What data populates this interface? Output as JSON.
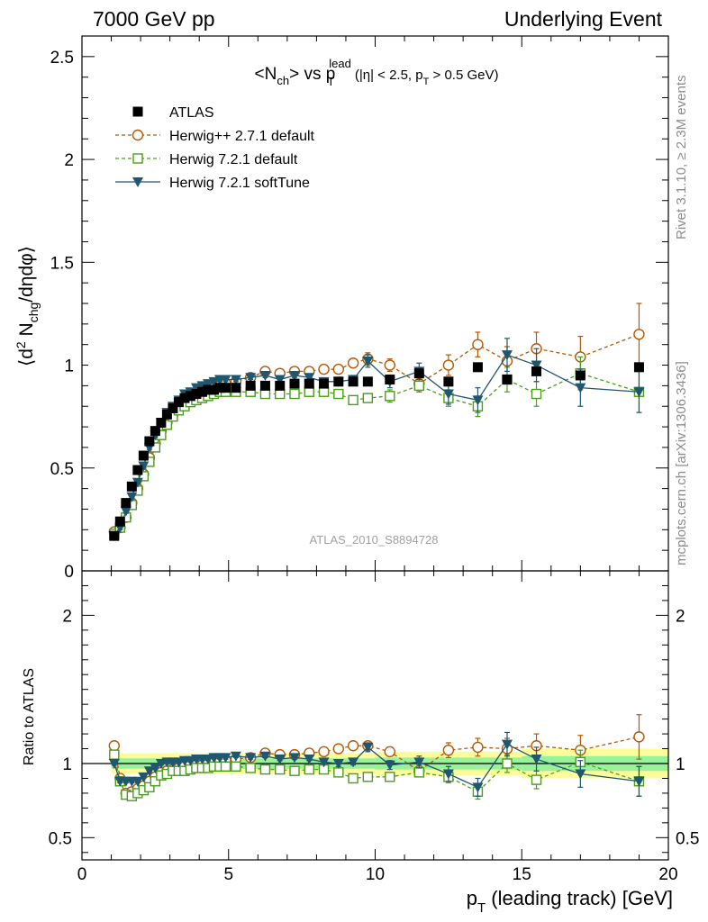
{
  "header": {
    "left": "7000 GeV pp",
    "right": "Underlying Event"
  },
  "side_labels": {
    "rivet": "Rivet 3.1.10, ≥ 2.3M events",
    "mcplots": "mcplots.cern.ch [arXiv:1306.3436]"
  },
  "watermark": "ATLAS_2010_S8894728",
  "colors": {
    "atlas": "#000000",
    "herwigpp": "#b35806",
    "herwig72": "#4b9c1c",
    "softtune": "#1f5670",
    "band_inner": "#97f29a",
    "band_outer": "#fcfc9c"
  },
  "chart_data": [
    {
      "type": "scatter",
      "title": "<Nch> vs pT lead (|η| < 2.5, pT > 0.5 GeV)",
      "title_parts": {
        "main": "<N",
        "sub1": "ch",
        "mid": "> vs p",
        "sub2": "T",
        "sup": "lead",
        "cuts": "(|η| < 2.5, p",
        "sub3": "T",
        "end": " > 0.5 GeV)"
      },
      "ylabel": "⟨d² Nchg/dηdφ⟩",
      "ylabel_parts": {
        "open": "⟨d",
        "sup": "2",
        "mid": " N",
        "sub": "chg",
        "end": "/dηdφ⟩"
      },
      "xlim": [
        0,
        20
      ],
      "ylim": [
        0,
        2.6
      ],
      "yticks": [
        0,
        0.5,
        1,
        1.5,
        2,
        2.5
      ],
      "ytick_labels": [
        "0",
        "0.5",
        "1",
        "1.5",
        "2",
        "2.5"
      ],
      "legend_position": "top-left",
      "x": [
        1.1,
        1.3,
        1.5,
        1.7,
        1.9,
        2.1,
        2.3,
        2.5,
        2.7,
        2.9,
        3.1,
        3.3,
        3.5,
        3.7,
        3.9,
        4.1,
        4.3,
        4.5,
        4.7,
        4.9,
        5.25,
        5.75,
        6.25,
        6.75,
        7.25,
        7.75,
        8.25,
        8.75,
        9.25,
        9.75,
        10.5,
        11.5,
        12.5,
        13.5,
        14.5,
        15.5,
        17,
        19
      ],
      "series": [
        {
          "name": "ATLAS",
          "marker": "filled-square",
          "y": [
            0.17,
            0.24,
            0.33,
            0.41,
            0.49,
            0.56,
            0.63,
            0.68,
            0.72,
            0.76,
            0.79,
            0.82,
            0.84,
            0.85,
            0.86,
            0.87,
            0.88,
            0.88,
            0.89,
            0.89,
            0.89,
            0.9,
            0.9,
            0.9,
            0.91,
            0.91,
            0.91,
            0.92,
            0.92,
            0.92,
            0.93,
            0.96,
            0.92,
            0.99,
            0.93,
            0.97,
            0.95,
            0.99
          ]
        },
        {
          "name": "Herwig++ 2.7.1 default",
          "marker": "open-circle",
          "y": [
            0.19,
            0.21,
            0.26,
            0.33,
            0.4,
            0.47,
            0.55,
            0.62,
            0.68,
            0.72,
            0.76,
            0.79,
            0.82,
            0.84,
            0.85,
            0.86,
            0.88,
            0.89,
            0.9,
            0.91,
            0.92,
            0.94,
            0.97,
            0.96,
            0.97,
            0.97,
            0.98,
            0.98,
            1.01,
            1.03,
            1.0,
            0.91,
            1.0,
            1.1,
            1.02,
            1.08,
            1.04,
            1.15
          ],
          "err": [
            0.01,
            0.01,
            0.01,
            0.01,
            0.01,
            0.01,
            0.01,
            0.01,
            0.01,
            0.01,
            0.01,
            0.01,
            0.01,
            0.01,
            0.01,
            0.01,
            0.01,
            0.01,
            0.01,
            0.01,
            0.01,
            0.01,
            0.01,
            0.01,
            0.01,
            0.01,
            0.01,
            0.02,
            0.02,
            0.03,
            0.03,
            0.04,
            0.05,
            0.06,
            0.07,
            0.08,
            0.1,
            0.15
          ]
        },
        {
          "name": "Herwig 7.2.1 default",
          "marker": "open-square",
          "y": [
            0.18,
            0.21,
            0.26,
            0.32,
            0.39,
            0.46,
            0.53,
            0.6,
            0.66,
            0.71,
            0.75,
            0.78,
            0.8,
            0.82,
            0.83,
            0.84,
            0.85,
            0.86,
            0.87,
            0.87,
            0.87,
            0.87,
            0.86,
            0.86,
            0.86,
            0.87,
            0.87,
            0.86,
            0.83,
            0.84,
            0.85,
            0.9,
            0.84,
            0.8,
            0.93,
            0.86,
            0.96,
            0.87
          ],
          "err": [
            0.01,
            0.01,
            0.01,
            0.01,
            0.01,
            0.01,
            0.01,
            0.01,
            0.01,
            0.01,
            0.01,
            0.01,
            0.01,
            0.01,
            0.01,
            0.01,
            0.01,
            0.01,
            0.01,
            0.01,
            0.01,
            0.01,
            0.01,
            0.01,
            0.01,
            0.01,
            0.01,
            0.02,
            0.02,
            0.02,
            0.03,
            0.03,
            0.04,
            0.05,
            0.06,
            0.06,
            0.08,
            0.1
          ]
        },
        {
          "name": "Herwig 7.2.1 softTune",
          "marker": "filled-triangle-down",
          "y": [
            0.17,
            0.21,
            0.29,
            0.36,
            0.43,
            0.51,
            0.6,
            0.66,
            0.72,
            0.77,
            0.8,
            0.83,
            0.86,
            0.87,
            0.89,
            0.9,
            0.91,
            0.92,
            0.93,
            0.93,
            0.93,
            0.94,
            0.95,
            0.93,
            0.95,
            0.94,
            0.92,
            0.92,
            0.93,
            1.02,
            0.92,
            0.97,
            0.86,
            0.83,
            1.05,
            1.0,
            0.89,
            0.87
          ],
          "err": [
            0.01,
            0.01,
            0.01,
            0.01,
            0.01,
            0.01,
            0.01,
            0.01,
            0.01,
            0.01,
            0.01,
            0.01,
            0.01,
            0.01,
            0.01,
            0.01,
            0.01,
            0.01,
            0.01,
            0.01,
            0.01,
            0.01,
            0.01,
            0.01,
            0.01,
            0.01,
            0.01,
            0.02,
            0.02,
            0.03,
            0.03,
            0.04,
            0.05,
            0.06,
            0.08,
            0.08,
            0.09,
            0.1
          ]
        }
      ]
    },
    {
      "type": "scatter",
      "ylabel": "Ratio to ATLAS",
      "xlabel": "pT (leading track) [GeV]",
      "xlabel_parts": {
        "main": "p",
        "sub": "T",
        "end": " (leading track) [GeV]"
      },
      "xlim": [
        0,
        20
      ],
      "ylim": [
        0.35,
        2.3
      ],
      "xticks": [
        0,
        5,
        10,
        15,
        20
      ],
      "xtick_labels": [
        "0",
        "5",
        "10",
        "15",
        "20"
      ],
      "yticks": [
        0.5,
        1,
        2
      ],
      "ytick_labels": [
        "0.5",
        "1",
        "2"
      ],
      "x": [
        1.1,
        1.3,
        1.5,
        1.7,
        1.9,
        2.1,
        2.3,
        2.5,
        2.7,
        2.9,
        3.1,
        3.3,
        3.5,
        3.7,
        3.9,
        4.1,
        4.3,
        4.5,
        4.7,
        4.9,
        5.25,
        5.75,
        6.25,
        6.75,
        7.25,
        7.75,
        8.25,
        8.75,
        9.25,
        9.75,
        10.5,
        11.5,
        12.5,
        13.5,
        14.5,
        15.5,
        17,
        19
      ],
      "bands": {
        "x_edges": [
          1,
          10,
          15,
          20
        ],
        "inner": [
          0.035,
          0.04,
          0.05
        ],
        "outer": [
          0.07,
          0.08,
          0.1
        ]
      },
      "series": [
        {
          "name": "Herwig++ 2.7.1 default",
          "marker": "open-circle",
          "y": [
            1.12,
            0.9,
            0.8,
            0.81,
            0.83,
            0.85,
            0.88,
            0.91,
            0.94,
            0.95,
            0.96,
            0.97,
            0.98,
            0.99,
            0.99,
            0.99,
            1.0,
            1.01,
            1.01,
            1.02,
            1.03,
            1.04,
            1.07,
            1.06,
            1.06,
            1.07,
            1.08,
            1.1,
            1.12,
            1.12,
            1.08,
            0.95,
            1.09,
            1.11,
            1.1,
            1.12,
            1.09,
            1.18
          ],
          "err": [
            0.01,
            0.01,
            0.01,
            0.01,
            0.01,
            0.01,
            0.01,
            0.01,
            0.01,
            0.01,
            0.01,
            0.01,
            0.01,
            0.01,
            0.01,
            0.01,
            0.01,
            0.01,
            0.01,
            0.01,
            0.01,
            0.01,
            0.01,
            0.01,
            0.01,
            0.01,
            0.01,
            0.02,
            0.02,
            0.03,
            0.03,
            0.04,
            0.05,
            0.06,
            0.07,
            0.08,
            0.1,
            0.15
          ]
        },
        {
          "name": "Herwig 7.2.1 default",
          "marker": "open-square",
          "y": [
            1.06,
            0.88,
            0.79,
            0.78,
            0.8,
            0.82,
            0.84,
            0.88,
            0.92,
            0.93,
            0.95,
            0.95,
            0.95,
            0.96,
            0.97,
            0.97,
            0.97,
            0.98,
            0.98,
            0.98,
            0.98,
            0.97,
            0.96,
            0.96,
            0.95,
            0.96,
            0.96,
            0.94,
            0.9,
            0.91,
            0.91,
            0.94,
            0.91,
            0.81,
            1.0,
            0.89,
            1.01,
            0.88
          ],
          "err": [
            0.01,
            0.01,
            0.01,
            0.01,
            0.01,
            0.01,
            0.01,
            0.01,
            0.01,
            0.01,
            0.01,
            0.01,
            0.01,
            0.01,
            0.01,
            0.01,
            0.01,
            0.01,
            0.01,
            0.01,
            0.01,
            0.01,
            0.01,
            0.01,
            0.01,
            0.01,
            0.01,
            0.02,
            0.02,
            0.02,
            0.03,
            0.03,
            0.04,
            0.05,
            0.06,
            0.06,
            0.08,
            0.1
          ]
        },
        {
          "name": "Herwig 7.2.1 softTune",
          "marker": "filled-triangle-down",
          "y": [
            1.0,
            0.88,
            0.88,
            0.88,
            0.88,
            0.91,
            0.95,
            0.97,
            1.0,
            1.01,
            1.01,
            1.01,
            1.02,
            1.02,
            1.03,
            1.03,
            1.03,
            1.04,
            1.04,
            1.04,
            1.05,
            1.04,
            1.05,
            1.03,
            1.04,
            1.03,
            1.01,
            1.0,
            1.01,
            1.11,
            0.99,
            1.01,
            0.93,
            0.84,
            1.13,
            1.03,
            0.93,
            0.88
          ],
          "err": [
            0.01,
            0.01,
            0.01,
            0.01,
            0.01,
            0.01,
            0.01,
            0.01,
            0.01,
            0.01,
            0.01,
            0.01,
            0.01,
            0.01,
            0.01,
            0.01,
            0.01,
            0.01,
            0.01,
            0.01,
            0.01,
            0.01,
            0.01,
            0.01,
            0.01,
            0.01,
            0.01,
            0.02,
            0.02,
            0.03,
            0.03,
            0.04,
            0.05,
            0.06,
            0.08,
            0.08,
            0.09,
            0.1
          ]
        }
      ]
    }
  ]
}
